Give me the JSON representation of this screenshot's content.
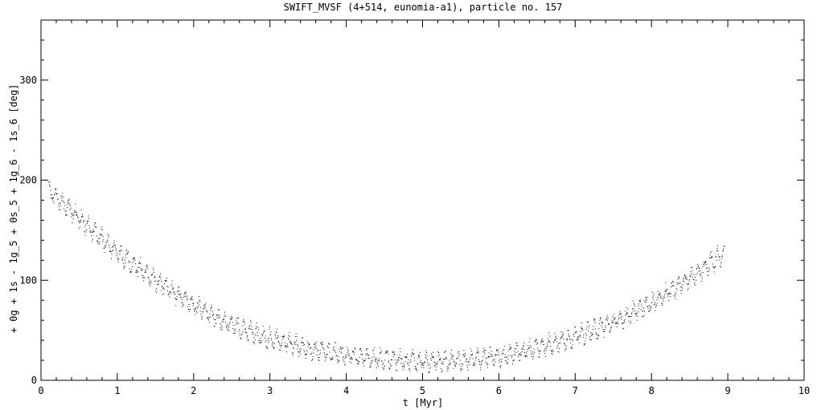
{
  "chart_data": {
    "type": "scatter",
    "title": "SWIFT_MVSF (4+514, eunomia-a1), particle no. 157",
    "xlabel": "t [Myr]",
    "ylabel": "+ 0g + 1s - 1g_5 + 0s_5 + 1g_6 - 1s_6 [deg]",
    "xlim": [
      0,
      10
    ],
    "ylim": [
      0,
      360
    ],
    "x_ticks": [
      "0",
      "1",
      "2",
      "3",
      "4",
      "5",
      "6",
      "7",
      "8",
      "9",
      "10"
    ],
    "y_ticks": [
      "0",
      "100",
      "200",
      "300"
    ],
    "grid": false,
    "marker_color": "#000000",
    "series": [
      {
        "x_range": [
          0.1,
          8.95
        ],
        "trend_t": [
          0.1,
          0.5,
          1.0,
          1.5,
          2.0,
          2.5,
          3.0,
          3.5,
          4.0,
          4.5,
          5.0,
          5.5,
          6.0,
          6.5,
          7.0,
          7.5,
          8.0,
          8.5,
          8.95
        ],
        "trend_deg": [
          190,
          162,
          128,
          100,
          75,
          55,
          42,
          32,
          25,
          21,
          19,
          20,
          24,
          33,
          44,
          58,
          78,
          102,
          128
        ],
        "scatter_amplitude_deg": 10
      }
    ]
  }
}
